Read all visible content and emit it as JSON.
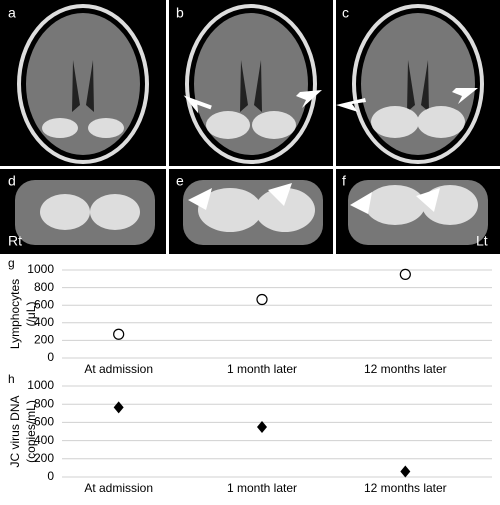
{
  "panels": {
    "labels": [
      "a",
      "b",
      "c",
      "d",
      "e",
      "f"
    ],
    "sides": [
      "Rt",
      "Lt"
    ]
  },
  "chart_data": [
    {
      "type": "scatter",
      "label": "g",
      "ylabel": [
        "Lymphocytes",
        "(/μL)"
      ],
      "categories": [
        "At admission",
        "1 month later",
        "12 months later"
      ],
      "values": [
        270,
        665,
        950
      ],
      "marker": "circle",
      "color": "#000000",
      "ylim": [
        0,
        1000
      ],
      "yticks": [
        0,
        200,
        400,
        600,
        800,
        1000
      ],
      "grid": true
    },
    {
      "type": "scatter",
      "label": "h",
      "ylabel": [
        "JC virus DNA",
        "(copies/mL)"
      ],
      "categories": [
        "At admission",
        "1 month later",
        "12 months later"
      ],
      "values": [
        765,
        550,
        60
      ],
      "marker": "diamond",
      "color": "#000000",
      "ylim": [
        0,
        1000
      ],
      "yticks": [
        0,
        200,
        400,
        600,
        800,
        1000
      ],
      "grid": true
    }
  ]
}
